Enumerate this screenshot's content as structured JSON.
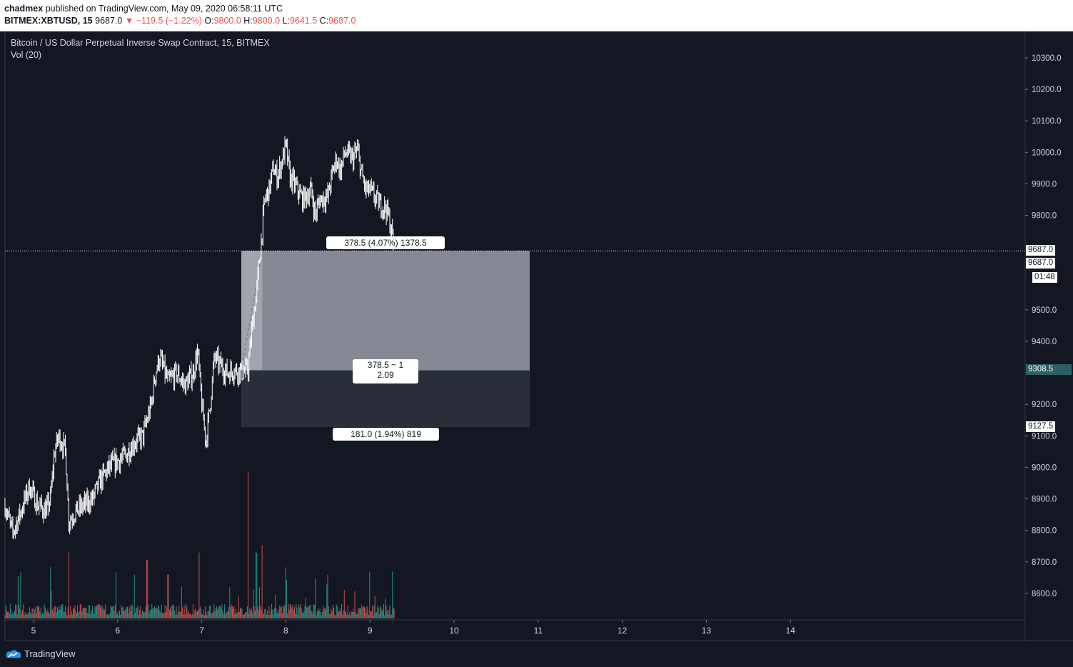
{
  "publish": {
    "author": "chadmex",
    "text": "published on TradingView.com, May 09, 2020 06:58:11 UTC"
  },
  "ohlc": {
    "symbol": "BITMEX:XBTUSD, 15",
    "last": "9687.0",
    "change": "▼ −119.5 (−1.22%)",
    "o_label": "O:",
    "o": "9800.0",
    "h_label": "H:",
    "h": "9800.0",
    "l_label": "L:",
    "l": "9641.5",
    "c_label": "C:",
    "c": "9687.0"
  },
  "chart_data": {
    "type": "candlestick",
    "title": "Bitcoin / US Dollar Perpetual Inverse Swap Contract, 15, BITMEX",
    "indicator": "Vol (20)",
    "y_ticks": [
      "10300.0",
      "10200.0",
      "10100.0",
      "10000.0",
      "9900.0",
      "9800.0",
      "9500.0",
      "9400.0",
      "9200.0",
      "9100.0",
      "9000.0",
      "8900.0",
      "8800.0",
      "8700.0",
      "8600.0"
    ],
    "y_tick_values": [
      10300,
      10200,
      10100,
      10000,
      9900,
      9800,
      9500,
      9400,
      9200,
      9100,
      9000,
      8900,
      8800,
      8700,
      8600
    ],
    "ylim": [
      8520,
      10380
    ],
    "x_ticks": [
      "5",
      "6",
      "7",
      "8",
      "9",
      "10",
      "11",
      "12",
      "13",
      "14"
    ],
    "x_tick_days": [
      5,
      6,
      7,
      8,
      9,
      10,
      11,
      12,
      13,
      14
    ],
    "xlim_days": [
      4.66,
      16.8
    ],
    "price_path": [
      [
        4.66,
        8880
      ],
      [
        4.75,
        8790
      ],
      [
        4.85,
        8860
      ],
      [
        4.95,
        8940
      ],
      [
        5.05,
        8880
      ],
      [
        5.15,
        8860
      ],
      [
        5.2,
        8900
      ],
      [
        5.25,
        9050
      ],
      [
        5.3,
        9100
      ],
      [
        5.38,
        9050
      ],
      [
        5.42,
        8830
      ],
      [
        5.5,
        8860
      ],
      [
        5.6,
        8880
      ],
      [
        5.7,
        8900
      ],
      [
        5.8,
        8960
      ],
      [
        5.9,
        9000
      ],
      [
        6.0,
        9020
      ],
      [
        6.1,
        9040
      ],
      [
        6.2,
        9080
      ],
      [
        6.3,
        9100
      ],
      [
        6.4,
        9200
      ],
      [
        6.45,
        9300
      ],
      [
        6.5,
        9350
      ],
      [
        6.6,
        9270
      ],
      [
        6.7,
        9300
      ],
      [
        6.8,
        9260
      ],
      [
        6.9,
        9300
      ],
      [
        6.95,
        9370
      ],
      [
        7.0,
        9200
      ],
      [
        7.05,
        9080
      ],
      [
        7.1,
        9200
      ],
      [
        7.15,
        9350
      ],
      [
        7.2,
        9330
      ],
      [
        7.3,
        9300
      ],
      [
        7.4,
        9310
      ],
      [
        7.5,
        9300
      ],
      [
        7.55,
        9310
      ],
      [
        7.6,
        9450
      ],
      [
        7.65,
        9550
      ],
      [
        7.7,
        9700
      ],
      [
        7.75,
        9850
      ],
      [
        7.8,
        9880
      ],
      [
        7.85,
        9950
      ],
      [
        7.9,
        9920
      ],
      [
        8.0,
        10020
      ],
      [
        8.05,
        9920
      ],
      [
        8.1,
        9900
      ],
      [
        8.2,
        9850
      ],
      [
        8.3,
        9880
      ],
      [
        8.35,
        9800
      ],
      [
        8.4,
        9850
      ],
      [
        8.5,
        9860
      ],
      [
        8.55,
        9930
      ],
      [
        8.6,
        9980
      ],
      [
        8.65,
        9940
      ],
      [
        8.7,
        10000
      ],
      [
        8.8,
        9980
      ],
      [
        8.85,
        10010
      ],
      [
        8.9,
        9930
      ],
      [
        8.95,
        9880
      ],
      [
        9.0,
        9880
      ],
      [
        9.1,
        9840
      ],
      [
        9.2,
        9820
      ],
      [
        9.25,
        9760
      ],
      [
        9.29,
        9687
      ]
    ],
    "volume_spikes": [
      {
        "day": 5.2,
        "v": 0.35
      },
      {
        "day": 5.42,
        "v": 0.45
      },
      {
        "day": 6.2,
        "v": 0.3
      },
      {
        "day": 6.35,
        "v": 0.4
      },
      {
        "day": 6.6,
        "v": 0.3
      },
      {
        "day": 6.97,
        "v": 0.45
      },
      {
        "day": 7.55,
        "v": 1.0
      },
      {
        "day": 7.65,
        "v": 0.45
      },
      {
        "day": 7.72,
        "v": 0.5
      },
      {
        "day": 8.0,
        "v": 0.35
      },
      {
        "day": 8.5,
        "v": 0.3
      },
      {
        "day": 9.0,
        "v": 0.32
      },
      {
        "day": 9.27,
        "v": 0.32
      }
    ],
    "last_price": 9687,
    "position": {
      "entry": 9308.5,
      "target": 9687.0,
      "stop": 9127.5,
      "start_day": 7.47,
      "end_day": 10.9,
      "target_label": "378.5 (4.07%) 1378.5",
      "ratio_line1": "378.5 ~ 1",
      "ratio_line2": "2.09",
      "stop_label": "181.0 (1.94%) 819"
    },
    "axis_tags": {
      "last_a": "9687.0",
      "last_b": "9687.0",
      "countdown": "01:48",
      "entry": "9308.5",
      "stop": "9127.5"
    },
    "colors": {
      "background": "#131722",
      "candle": "#ffffff",
      "target_zone": "#868993",
      "stop_zone": "#2a2e39",
      "vol_up": "#26a69a",
      "vol_down": "#ef5350",
      "entry_tag": "#2c5f64"
    }
  },
  "footer": {
    "brand": "TradingView"
  }
}
